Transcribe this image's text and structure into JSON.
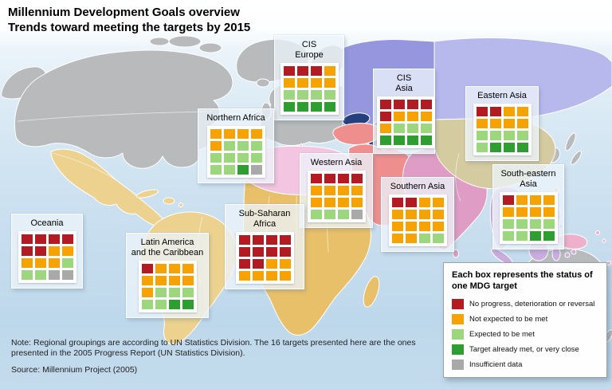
{
  "header": {
    "title_line1": "Millennium Development Goals overview",
    "title_line2": "Trends toward meeting the targets by 2015"
  },
  "status_colors": {
    "no_progress": "#b31b22",
    "not_expected": "#f6a301",
    "expected": "#9cd77d",
    "met": "#2f9e30",
    "insufficient": "#a9a9a9"
  },
  "chart_data": {
    "type": "heatmap",
    "title": "Millennium Development Goals overview — Trends toward meeting the targets by 2015",
    "unit": "Each box represents the status of one MDG target (16 targets per region)",
    "status_legend": [
      "no_progress",
      "not_expected",
      "expected",
      "met",
      "insufficient"
    ],
    "regions": [
      {
        "name": "CIS Europe",
        "grid_rows": [
          [
            "no_progress",
            "no_progress",
            "no_progress",
            "not_expected"
          ],
          [
            "not_expected",
            "not_expected",
            "not_expected",
            "not_expected"
          ],
          [
            "expected",
            "expected",
            "expected",
            "expected"
          ],
          [
            "met",
            "met",
            "met",
            "met"
          ]
        ]
      },
      {
        "name": "CIS Asia",
        "grid_rows": [
          [
            "no_progress",
            "no_progress",
            "no_progress",
            "no_progress"
          ],
          [
            "no_progress",
            "not_expected",
            "not_expected",
            "not_expected"
          ],
          [
            "not_expected",
            "expected",
            "expected",
            "expected"
          ],
          [
            "met",
            "met",
            "met",
            "met"
          ]
        ]
      },
      {
        "name": "Eastern Asia",
        "grid_rows": [
          [
            "no_progress",
            "no_progress",
            "not_expected",
            "not_expected"
          ],
          [
            "not_expected",
            "not_expected",
            "not_expected",
            "not_expected"
          ],
          [
            "expected",
            "expected",
            "expected",
            "expected"
          ],
          [
            "expected",
            "met",
            "met",
            "met"
          ]
        ]
      },
      {
        "name": "Northern Africa",
        "grid_rows": [
          [
            "not_expected",
            "not_expected",
            "not_expected",
            "not_expected"
          ],
          [
            "not_expected",
            "expected",
            "expected",
            "expected"
          ],
          [
            "expected",
            "expected",
            "expected",
            "expected"
          ],
          [
            "expected",
            "expected",
            "met",
            "insufficient"
          ]
        ]
      },
      {
        "name": "Western Asia",
        "grid_rows": [
          [
            "no_progress",
            "no_progress",
            "no_progress",
            "no_progress"
          ],
          [
            "not_expected",
            "not_expected",
            "not_expected",
            "not_expected"
          ],
          [
            "not_expected",
            "not_expected",
            "not_expected",
            "not_expected"
          ],
          [
            "expected",
            "expected",
            "expected",
            "insufficient"
          ]
        ]
      },
      {
        "name": "Southern Asia",
        "grid_rows": [
          [
            "no_progress",
            "no_progress",
            "not_expected",
            "not_expected"
          ],
          [
            "not_expected",
            "not_expected",
            "not_expected",
            "not_expected"
          ],
          [
            "not_expected",
            "not_expected",
            "not_expected",
            "not_expected"
          ],
          [
            "not_expected",
            "not_expected",
            "expected",
            "expected"
          ]
        ]
      },
      {
        "name": "South-eastern Asia",
        "grid_rows": [
          [
            "no_progress",
            "not_expected",
            "not_expected",
            "not_expected"
          ],
          [
            "not_expected",
            "not_expected",
            "not_expected",
            "not_expected"
          ],
          [
            "expected",
            "expected",
            "expected",
            "expected"
          ],
          [
            "expected",
            "expected",
            "met",
            "met"
          ]
        ]
      },
      {
        "name": "Sub-Saharan Africa",
        "grid_rows": [
          [
            "no_progress",
            "no_progress",
            "no_progress",
            "no_progress"
          ],
          [
            "no_progress",
            "no_progress",
            "no_progress",
            "no_progress"
          ],
          [
            "no_progress",
            "no_progress",
            "not_expected",
            "not_expected"
          ],
          [
            "not_expected",
            "not_expected",
            "not_expected",
            "not_expected"
          ]
        ]
      },
      {
        "name": "Latin America and the Caribbean",
        "grid_rows": [
          [
            "no_progress",
            "not_expected",
            "not_expected",
            "not_expected"
          ],
          [
            "not_expected",
            "not_expected",
            "not_expected",
            "not_expected"
          ],
          [
            "not_expected",
            "expected",
            "expected",
            "expected"
          ],
          [
            "expected",
            "expected",
            "met",
            "met"
          ]
        ]
      },
      {
        "name": "Oceania",
        "grid_rows": [
          [
            "no_progress",
            "no_progress",
            "no_progress",
            "no_progress"
          ],
          [
            "no_progress",
            "no_progress",
            "not_expected",
            "not_expected"
          ],
          [
            "not_expected",
            "not_expected",
            "not_expected",
            "expected"
          ],
          [
            "expected",
            "expected",
            "insufficient",
            "insufficient"
          ]
        ]
      }
    ]
  },
  "regions": [
    {
      "id": "cis-europe",
      "title": "CIS\nEurope",
      "grid": [
        "no_progress",
        "no_progress",
        "no_progress",
        "not_expected",
        "not_expected",
        "not_expected",
        "not_expected",
        "not_expected",
        "expected",
        "expected",
        "expected",
        "expected",
        "met",
        "met",
        "met",
        "met"
      ]
    },
    {
      "id": "cis-asia",
      "title": "CIS\nAsia",
      "grid": [
        "no_progress",
        "no_progress",
        "no_progress",
        "no_progress",
        "no_progress",
        "not_expected",
        "not_expected",
        "not_expected",
        "not_expected",
        "expected",
        "expected",
        "expected",
        "met",
        "met",
        "met",
        "met"
      ]
    },
    {
      "id": "eastern-asia",
      "title": "Eastern Asia",
      "grid": [
        "no_progress",
        "no_progress",
        "not_expected",
        "not_expected",
        "not_expected",
        "not_expected",
        "not_expected",
        "not_expected",
        "expected",
        "expected",
        "expected",
        "expected",
        "expected",
        "met",
        "met",
        "met"
      ]
    },
    {
      "id": "northern-africa",
      "title": "Northern Africa",
      "grid": [
        "not_expected",
        "not_expected",
        "not_expected",
        "not_expected",
        "not_expected",
        "expected",
        "expected",
        "expected",
        "expected",
        "expected",
        "expected",
        "expected",
        "expected",
        "expected",
        "met",
        "insufficient"
      ]
    },
    {
      "id": "western-asia",
      "title": "Western Asia",
      "grid": [
        "no_progress",
        "no_progress",
        "no_progress",
        "no_progress",
        "not_expected",
        "not_expected",
        "not_expected",
        "not_expected",
        "not_expected",
        "not_expected",
        "not_expected",
        "not_expected",
        "expected",
        "expected",
        "expected",
        "insufficient"
      ]
    },
    {
      "id": "southern-asia",
      "title": "Southern Asia",
      "grid": [
        "no_progress",
        "no_progress",
        "not_expected",
        "not_expected",
        "not_expected",
        "not_expected",
        "not_expected",
        "not_expected",
        "not_expected",
        "not_expected",
        "not_expected",
        "not_expected",
        "not_expected",
        "not_expected",
        "expected",
        "expected"
      ]
    },
    {
      "id": "south-eastern-asia",
      "title": "South-eastern\nAsia",
      "grid": [
        "no_progress",
        "not_expected",
        "not_expected",
        "not_expected",
        "not_expected",
        "not_expected",
        "not_expected",
        "not_expected",
        "expected",
        "expected",
        "expected",
        "expected",
        "expected",
        "expected",
        "met",
        "met"
      ]
    },
    {
      "id": "sub-saharan-africa",
      "title": "Sub-Saharan Africa",
      "grid": [
        "no_progress",
        "no_progress",
        "no_progress",
        "no_progress",
        "no_progress",
        "no_progress",
        "no_progress",
        "no_progress",
        "no_progress",
        "no_progress",
        "not_expected",
        "not_expected",
        "not_expected",
        "not_expected",
        "not_expected",
        "not_expected"
      ]
    },
    {
      "id": "latin-america",
      "title": "Latin America\nand the Caribbean",
      "grid": [
        "no_progress",
        "not_expected",
        "not_expected",
        "not_expected",
        "not_expected",
        "not_expected",
        "not_expected",
        "not_expected",
        "not_expected",
        "expected",
        "expected",
        "expected",
        "expected",
        "expected",
        "met",
        "met"
      ]
    },
    {
      "id": "oceania",
      "title": "Oceania",
      "grid": [
        "no_progress",
        "no_progress",
        "no_progress",
        "no_progress",
        "no_progress",
        "no_progress",
        "not_expected",
        "not_expected",
        "not_expected",
        "not_expected",
        "not_expected",
        "expected",
        "expected",
        "expected",
        "insufficient",
        "insufficient"
      ]
    }
  ],
  "legend": {
    "title": "Each box represents the status of one MDG target",
    "items": [
      {
        "key": "no_progress",
        "label": "No progress, deterioration or reversal"
      },
      {
        "key": "not_expected",
        "label": "Not expected to be met"
      },
      {
        "key": "expected",
        "label": "Expected to be met"
      },
      {
        "key": "met",
        "label": "Target already met, or very close"
      },
      {
        "key": "insufficient",
        "label": "Insufficient data"
      }
    ]
  },
  "footer": {
    "note": "Note: Regional groupings are according to UN Statistics Division. The 16 targets presented here are the ones presented in the 2005 Progress Report (UN Statistics Division).",
    "source": "Source: Millennium Project (2005)"
  }
}
